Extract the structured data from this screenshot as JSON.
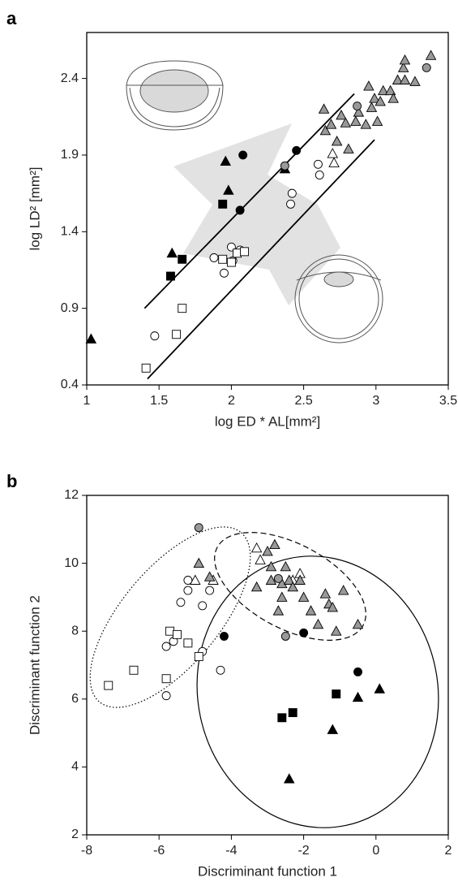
{
  "chart_data": [
    {
      "type": "scatter",
      "panel_label": "a",
      "xlabel": "log ED * AL[mm²]",
      "ylabel": "log LD² [mm²]",
      "xlim": [
        1,
        3.5
      ],
      "ylim": [
        0.4,
        2.7
      ],
      "xticks": [
        1,
        1.5,
        2,
        2.5,
        3,
        3.5
      ],
      "yticks": [
        0.4,
        0.9,
        1.4,
        1.9,
        2.4
      ],
      "series": [
        {
          "marker": "triangle",
          "color": "#000000",
          "x": [
            1.03,
            1.59,
            1.98,
            1.96,
            2.37
          ],
          "y": [
            0.7,
            1.26,
            1.67,
            1.86,
            1.81
          ]
        },
        {
          "marker": "square",
          "color": "#000000",
          "x": [
            1.58,
            1.66,
            1.94
          ],
          "y": [
            1.11,
            1.22,
            1.58
          ]
        },
        {
          "marker": "circle",
          "color": "#000000",
          "x": [
            2.08,
            2.06,
            2.45
          ],
          "y": [
            1.9,
            1.54,
            1.93
          ]
        },
        {
          "marker": "circle",
          "color": "#ffffff",
          "x": [
            1.47,
            1.88,
            1.95,
            2.0,
            2.01,
            2.06,
            2.41,
            2.42,
            2.6,
            2.61
          ],
          "y": [
            0.72,
            1.23,
            1.13,
            1.3,
            1.21,
            1.28,
            1.58,
            1.65,
            1.84,
            1.77
          ]
        },
        {
          "marker": "square",
          "color": "#ffffff",
          "x": [
            1.41,
            1.62,
            1.66,
            1.94,
            2.0,
            2.04,
            2.09
          ],
          "y": [
            0.51,
            0.73,
            0.9,
            1.22,
            1.2,
            1.26,
            1.27
          ]
        },
        {
          "marker": "triangle",
          "color": "#ffffff",
          "x": [
            2.7,
            2.71
          ],
          "y": [
            1.91,
            1.85
          ]
        },
        {
          "marker": "triangle",
          "color": "#999999",
          "x": [
            2.64,
            2.65,
            2.69,
            2.73,
            2.76,
            2.79,
            2.81,
            2.86,
            2.88,
            2.93,
            2.95,
            2.97,
            2.99,
            3.01,
            3.03,
            3.05,
            3.1,
            3.12,
            3.15,
            3.19,
            3.2,
            3.2,
            3.27,
            3.38
          ],
          "y": [
            2.2,
            2.06,
            2.1,
            1.99,
            2.16,
            2.11,
            1.94,
            2.12,
            2.18,
            2.1,
            2.35,
            2.21,
            2.27,
            2.12,
            2.25,
            2.32,
            2.32,
            2.27,
            2.39,
            2.47,
            2.52,
            2.39,
            2.38,
            2.55
          ]
        },
        {
          "marker": "circle",
          "color": "#999999",
          "x": [
            2.37,
            2.87,
            3.35
          ],
          "y": [
            1.83,
            2.22,
            2.47
          ]
        }
      ],
      "lines": [
        {
          "x": [
            1.4,
            2.85
          ],
          "y": [
            0.9,
            2.3
          ]
        },
        {
          "x": [
            1.42,
            2.99
          ],
          "y": [
            0.44,
            2.0
          ]
        }
      ]
    },
    {
      "type": "scatter",
      "panel_label": "b",
      "xlabel": "Discriminant function 1",
      "ylabel": "Discriminant function 2",
      "xlim": [
        -8,
        2
      ],
      "ylim": [
        2,
        12
      ],
      "xticks": [
        -8,
        -6,
        -4,
        -2,
        0,
        2
      ],
      "yticks": [
        2,
        4,
        6,
        8,
        10,
        12
      ],
      "series": [
        {
          "marker": "triangle",
          "color": "#000000",
          "x": [
            0.1,
            -0.5,
            -1.2,
            -2.4
          ],
          "y": [
            6.3,
            6.05,
            5.1,
            3.65
          ]
        },
        {
          "marker": "square",
          "color": "#000000",
          "x": [
            -2.6,
            -2.3,
            -1.1
          ],
          "y": [
            5.45,
            5.6,
            6.15
          ]
        },
        {
          "marker": "circle",
          "color": "#000000",
          "x": [
            -4.2,
            -2.0,
            -0.5
          ],
          "y": [
            7.85,
            7.95,
            6.8
          ]
        },
        {
          "marker": "circle",
          "color": "#ffffff",
          "x": [
            -5.8,
            -4.3,
            -5.8,
            -5.6,
            -5.2,
            -4.8,
            -5.4,
            -4.8,
            -5.2,
            -4.6,
            -5.2
          ],
          "y": [
            6.1,
            6.85,
            7.55,
            7.7,
            7.65,
            7.4,
            8.85,
            8.75,
            9.2,
            9.2,
            9.5
          ]
        },
        {
          "marker": "square",
          "color": "#ffffff",
          "x": [
            -7.4,
            -6.7,
            -5.8,
            -5.7,
            -5.5,
            -5.2,
            -4.9
          ],
          "y": [
            6.4,
            6.85,
            6.6,
            8.0,
            7.9,
            7.65,
            7.25
          ]
        },
        {
          "marker": "triangle",
          "color": "#ffffff",
          "x": [
            -5.0,
            -4.5,
            -3.3,
            -3.2,
            -2.3,
            -2.1
          ],
          "y": [
            9.5,
            9.5,
            10.45,
            10.1,
            9.5,
            9.7
          ]
        },
        {
          "marker": "triangle",
          "color": "#999999",
          "x": [
            -4.9,
            -4.6,
            -3.3,
            -3.0,
            -2.8,
            -2.9,
            -2.9,
            -2.7,
            -2.6,
            -2.6,
            -2.5,
            -2.4,
            -2.3,
            -2.1,
            -2.0,
            -1.8,
            -1.6,
            -1.4,
            -1.3,
            -1.2,
            -1.1,
            -0.9,
            -0.5
          ],
          "y": [
            10.0,
            9.6,
            9.3,
            10.35,
            10.55,
            9.9,
            9.5,
            8.6,
            9.0,
            9.4,
            9.9,
            9.5,
            9.3,
            9.5,
            9.0,
            8.6,
            8.2,
            9.1,
            8.8,
            8.7,
            8.0,
            9.2,
            8.2
          ]
        },
        {
          "marker": "circle",
          "color": "#999999",
          "x": [
            -4.9,
            -2.7,
            -2.5
          ],
          "y": [
            11.05,
            9.55,
            7.85
          ]
        }
      ]
    }
  ]
}
